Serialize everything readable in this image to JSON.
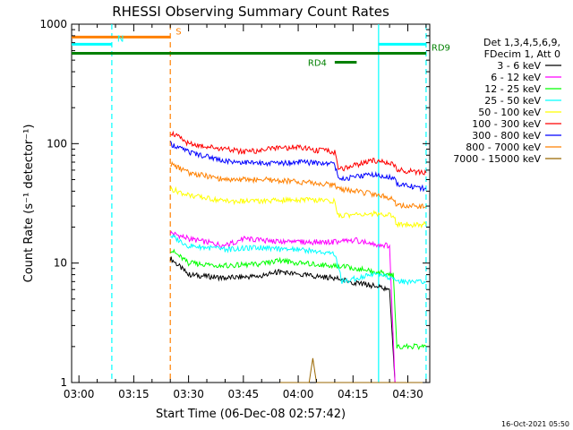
{
  "chart_data": {
    "type": "line",
    "title": "RHESSI Observing Summary Count Rates",
    "xlabel": "Start Time (06-Dec-08 02:57:42)",
    "ylabel": "Count Rate (s⁻¹ detector⁻¹)",
    "yscale": "log",
    "ylim": [
      1,
      1000
    ],
    "xlim_minutes": [
      -2,
      96
    ],
    "y_ticks": [
      "1",
      "10",
      "100",
      "1000"
    ],
    "x_ticks": [
      "03:00",
      "03:15",
      "03:30",
      "03:45",
      "04:00",
      "04:15",
      "04:30"
    ],
    "legend_header": [
      "Det 1,3,4,5,6,9,",
      "FDecim 1, Att 0"
    ],
    "timestamp": "16-Oct-2021 05:50",
    "series": [
      {
        "name": "3 - 6 keV",
        "color": "#000000",
        "x": [
          25,
          30,
          40,
          50,
          55,
          60,
          70,
          76,
          80,
          85,
          86.5
        ],
        "y": [
          11,
          8,
          7.5,
          7.8,
          8.5,
          8,
          7.5,
          6.8,
          6.5,
          6,
          0
        ]
      },
      {
        "name": "6 - 12 keV",
        "color": "#ff00ff",
        "x": [
          25,
          30,
          40,
          45,
          50,
          55,
          60,
          70,
          76,
          80,
          85,
          86.5
        ],
        "y": [
          18,
          16,
          14,
          16,
          15.5,
          15,
          15,
          15,
          15.5,
          14.5,
          14,
          0
        ]
      },
      {
        "name": "12 - 25 keV",
        "color": "#00ff00",
        "x": [
          25,
          30,
          40,
          50,
          55,
          60,
          70,
          76,
          80,
          86,
          87,
          95
        ],
        "y": [
          13,
          10,
          9.5,
          9.8,
          10.5,
          10,
          9.5,
          9,
          8.5,
          8,
          2,
          2
        ]
      },
      {
        "name": "25 - 50 keV",
        "color": "#00ffff",
        "x": [
          25,
          30,
          40,
          50,
          55,
          60,
          70,
          72,
          80,
          86,
          87,
          95
        ],
        "y": [
          17,
          14,
          13,
          13.5,
          13,
          13,
          12,
          7,
          8,
          7.5,
          7,
          7
        ]
      },
      {
        "name": "50 - 100 keV",
        "color": "#ffff00",
        "x": [
          25,
          30,
          40,
          50,
          60,
          70,
          71,
          80,
          86,
          87,
          95
        ],
        "y": [
          42,
          37,
          33,
          33,
          34,
          33,
          25,
          26,
          25,
          21,
          21
        ]
      },
      {
        "name": "100 - 300 keV",
        "color": "#ff0000",
        "x": [
          25,
          30,
          40,
          45,
          50,
          55,
          60,
          65,
          70,
          71,
          80,
          86,
          87,
          95
        ],
        "y": [
          125,
          100,
          90,
          85,
          88,
          92,
          93,
          88,
          85,
          60,
          72,
          68,
          60,
          57
        ]
      },
      {
        "name": "300 - 800 keV",
        "color": "#0000ff",
        "x": [
          25,
          30,
          40,
          50,
          60,
          70,
          71,
          80,
          86,
          87,
          95
        ],
        "y": [
          100,
          85,
          72,
          68,
          70,
          68,
          50,
          55,
          52,
          46,
          42
        ]
      },
      {
        "name": "800 - 7000 keV",
        "color": "#ff8000",
        "x": [
          25,
          30,
          40,
          50,
          60,
          70,
          71,
          80,
          86,
          87,
          95
        ],
        "y": [
          68,
          57,
          50,
          50,
          48,
          45,
          42,
          38,
          35,
          30,
          30
        ]
      },
      {
        "name": "7000 - 15000 keV",
        "color": "#996600",
        "x": [
          55,
          60,
          63,
          64,
          65,
          70,
          95
        ],
        "y": [
          1,
          1,
          1,
          1.6,
          1,
          1,
          1
        ]
      }
    ],
    "flags": [
      {
        "label": "S",
        "color": "#ff8000",
        "x_start": -2,
        "x_end": 25,
        "y": 780
      },
      {
        "label": "N",
        "color": "#00ffff",
        "x_start": -2,
        "x_end": 9,
        "y": 680
      },
      {
        "label": "",
        "color": "#00ffff",
        "x_start": 82,
        "x_end": 95,
        "y": 680
      },
      {
        "label": "RD9",
        "color": "#008000",
        "x_start": -2,
        "x_end": 95,
        "y": 570
      },
      {
        "label": "RD4",
        "color": "#008000",
        "x_start": 70,
        "x_end": 76,
        "y": 480
      }
    ],
    "vertical_lines": [
      {
        "x": 9,
        "color": "#00ffff",
        "style": "dashed"
      },
      {
        "x": 25,
        "color": "#ff8000",
        "style": "dashed"
      },
      {
        "x": 82,
        "color": "#00ffff",
        "style": "solid"
      },
      {
        "x": 95,
        "color": "#00ffff",
        "style": "dashed"
      }
    ],
    "grid": false,
    "legend_position": "right"
  }
}
